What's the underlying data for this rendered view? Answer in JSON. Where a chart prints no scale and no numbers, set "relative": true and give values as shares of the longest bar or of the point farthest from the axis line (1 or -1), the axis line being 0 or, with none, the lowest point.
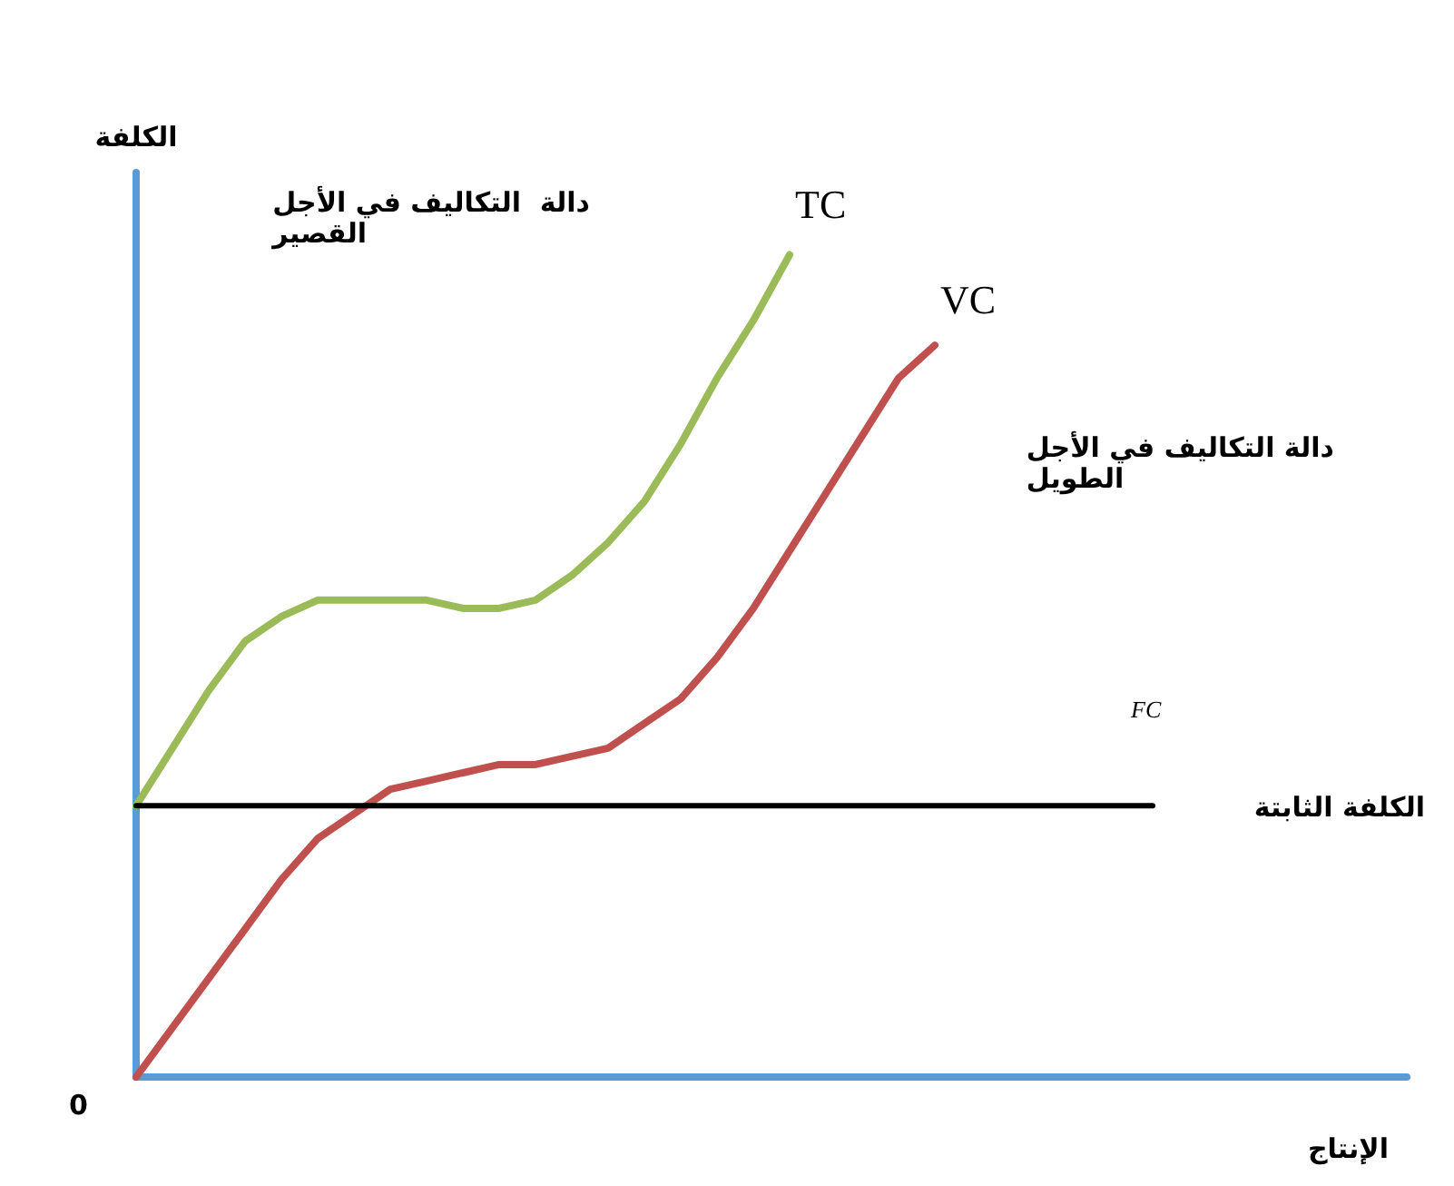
{
  "chart_data": {
    "type": "line",
    "relative": true,
    "xlabel": "الإنتاج",
    "ylabel": "الكلفة",
    "annotations": [
      "دالة  التكاليف في الأجل\nالقصير",
      "دالة التكاليف في الأجل\nالطويل",
      "الكلفة الثابتة",
      "0"
    ],
    "categories": [
      null,
      null,
      null,
      null,
      null,
      null,
      null,
      null,
      null,
      null,
      null,
      null,
      null,
      null,
      null,
      null,
      null,
      null,
      null,
      null,
      null,
      null,
      null,
      null,
      null,
      null,
      null,
      null,
      null,
      null,
      null,
      null,
      null,
      null,
      null,
      null
    ],
    "series": [
      {
        "name": "TC",
        "color": "#9bbb59",
        "values": [
          0.33,
          0.4,
          0.47,
          0.53,
          0.56,
          0.58,
          0.58,
          0.58,
          0.58,
          0.57,
          0.57,
          0.58,
          0.61,
          0.65,
          0.7,
          0.77,
          0.85,
          0.92,
          1.0,
          null,
          null,
          null,
          null,
          null,
          null,
          null,
          null,
          null,
          null,
          null,
          null,
          null,
          null,
          null,
          null,
          null
        ]
      },
      {
        "name": "VC",
        "color": "#c0504d",
        "values": [
          0,
          0.06,
          0.12,
          0.18,
          0.24,
          0.29,
          0.32,
          0.35,
          0.36,
          0.37,
          0.38,
          0.38,
          0.39,
          0.4,
          0.43,
          0.46,
          0.51,
          0.57,
          0.64,
          0.71,
          0.78,
          0.85,
          0.89,
          null,
          null,
          null,
          null,
          null,
          null,
          null,
          null,
          null,
          null,
          null,
          null,
          null
        ]
      },
      {
        "name": "FC",
        "color": "#000000",
        "values": [
          0.33,
          0.33,
          0.33,
          0.33,
          0.33,
          0.33,
          0.33,
          0.33,
          0.33,
          0.33,
          0.33,
          0.33,
          0.33,
          0.33,
          0.33,
          0.33,
          0.33,
          0.33,
          0.33,
          0.33,
          0.33,
          0.33,
          0.33,
          0.33,
          0.33,
          0.33,
          0.33,
          0.33,
          0.33,
          null,
          null,
          null,
          null,
          null,
          null,
          null
        ]
      }
    ],
    "grid": false,
    "legend": false,
    "marker": "none",
    "line_style": "solid"
  }
}
